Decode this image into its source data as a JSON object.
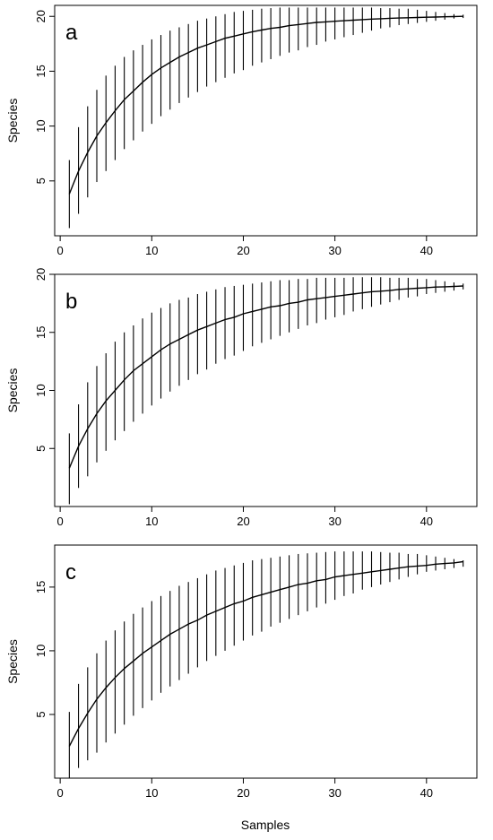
{
  "figure": {
    "xlabel": "Samples"
  },
  "chart_data": [
    {
      "type": "line",
      "panel_label": "a",
      "ylabel": "Species",
      "xlim": [
        0,
        45
      ],
      "ylim": [
        0,
        21
      ],
      "x_ticks": [
        0,
        10,
        20,
        30,
        40
      ],
      "y_ticks": [
        5,
        10,
        15,
        20
      ],
      "grid": false,
      "x": [
        1,
        2,
        3,
        4,
        5,
        6,
        7,
        8,
        9,
        10,
        11,
        12,
        13,
        14,
        15,
        16,
        17,
        18,
        19,
        20,
        21,
        22,
        23,
        24,
        25,
        26,
        27,
        28,
        29,
        30,
        31,
        32,
        33,
        34,
        35,
        36,
        37,
        38,
        39,
        40,
        41,
        42,
        43,
        44
      ],
      "series": [
        {
          "values": [
            3.8,
            5.9,
            7.6,
            9.1,
            10.3,
            11.4,
            12.4,
            13.2,
            14.0,
            14.7,
            15.3,
            15.8,
            16.3,
            16.7,
            17.1,
            17.4,
            17.7,
            18.0,
            18.2,
            18.4,
            18.6,
            18.75,
            18.9,
            19.0,
            19.15,
            19.25,
            19.35,
            19.45,
            19.5,
            19.55,
            19.6,
            19.65,
            19.7,
            19.75,
            19.78,
            19.82,
            19.85,
            19.87,
            19.9,
            19.92,
            19.94,
            19.96,
            19.98,
            20.0
          ],
          "lower": [
            0.7,
            2.0,
            3.5,
            4.9,
            5.9,
            6.9,
            7.9,
            8.7,
            9.5,
            10.2,
            10.9,
            11.5,
            12.1,
            12.6,
            13.1,
            13.6,
            14.0,
            14.4,
            14.8,
            15.1,
            15.5,
            15.8,
            16.1,
            16.4,
            16.7,
            16.9,
            17.2,
            17.4,
            17.7,
            17.9,
            18.1,
            18.3,
            18.5,
            18.7,
            18.9,
            19.0,
            19.2,
            19.3,
            19.4,
            19.5,
            19.6,
            19.7,
            19.8,
            19.85
          ],
          "upper": [
            6.9,
            9.9,
            11.8,
            13.3,
            14.6,
            15.5,
            16.3,
            16.9,
            17.4,
            17.9,
            18.3,
            18.7,
            19.0,
            19.3,
            19.6,
            19.8,
            20.0,
            20.2,
            20.4,
            20.5,
            20.6,
            20.7,
            20.75,
            20.8,
            20.8,
            20.8,
            20.8,
            20.8,
            20.8,
            20.8,
            20.8,
            20.8,
            20.8,
            20.8,
            20.75,
            20.75,
            20.7,
            20.7,
            20.6,
            20.5,
            20.4,
            20.3,
            20.2,
            20.15
          ]
        }
      ]
    },
    {
      "type": "line",
      "panel_label": "b",
      "ylabel": "Species",
      "xlim": [
        0,
        45
      ],
      "ylim": [
        0,
        20
      ],
      "x_ticks": [
        0,
        10,
        20,
        30,
        40
      ],
      "y_ticks": [
        5,
        10,
        15,
        20
      ],
      "grid": false,
      "x": [
        1,
        2,
        3,
        4,
        5,
        6,
        7,
        8,
        9,
        10,
        11,
        12,
        13,
        14,
        15,
        16,
        17,
        18,
        19,
        20,
        21,
        22,
        23,
        24,
        25,
        26,
        27,
        28,
        29,
        30,
        31,
        32,
        33,
        34,
        35,
        36,
        37,
        38,
        39,
        40,
        41,
        42,
        43,
        44
      ],
      "series": [
        {
          "values": [
            3.3,
            5.2,
            6.7,
            8.0,
            9.1,
            10.0,
            10.9,
            11.7,
            12.3,
            12.9,
            13.5,
            14.0,
            14.4,
            14.8,
            15.2,
            15.5,
            15.8,
            16.1,
            16.3,
            16.6,
            16.8,
            17.0,
            17.2,
            17.3,
            17.5,
            17.6,
            17.8,
            17.9,
            18.0,
            18.1,
            18.2,
            18.3,
            18.4,
            18.5,
            18.55,
            18.6,
            18.7,
            18.75,
            18.8,
            18.85,
            18.9,
            18.93,
            18.96,
            19.0
          ],
          "lower": [
            0.2,
            1.6,
            2.6,
            3.8,
            4.8,
            5.7,
            6.5,
            7.3,
            8.0,
            8.7,
            9.3,
            9.9,
            10.4,
            10.9,
            11.4,
            11.8,
            12.3,
            12.7,
            13.0,
            13.4,
            13.8,
            14.1,
            14.4,
            14.7,
            15.0,
            15.3,
            15.6,
            15.8,
            16.1,
            16.3,
            16.5,
            16.8,
            17.0,
            17.2,
            17.4,
            17.6,
            17.8,
            18.0,
            18.1,
            18.3,
            18.4,
            18.5,
            18.6,
            18.7
          ],
          "upper": [
            6.3,
            8.8,
            10.7,
            12.1,
            13.2,
            14.2,
            15.0,
            15.6,
            16.2,
            16.7,
            17.1,
            17.5,
            17.8,
            18.0,
            18.3,
            18.5,
            18.7,
            18.9,
            19.0,
            19.1,
            19.2,
            19.3,
            19.4,
            19.5,
            19.5,
            19.6,
            19.6,
            19.7,
            19.7,
            19.7,
            19.7,
            19.75,
            19.75,
            19.75,
            19.75,
            19.7,
            19.7,
            19.7,
            19.6,
            19.6,
            19.5,
            19.4,
            19.3,
            19.2
          ]
        }
      ]
    },
    {
      "type": "line",
      "panel_label": "c",
      "ylabel": "Species",
      "xlim": [
        0,
        45
      ],
      "ylim": [
        0,
        18
      ],
      "x_ticks": [
        0,
        10,
        20,
        30,
        40
      ],
      "y_ticks": [
        5,
        10,
        15
      ],
      "grid": false,
      "x": [
        1,
        2,
        3,
        4,
        5,
        6,
        7,
        8,
        9,
        10,
        11,
        12,
        13,
        14,
        15,
        16,
        17,
        18,
        19,
        20,
        21,
        22,
        23,
        24,
        25,
        26,
        27,
        28,
        29,
        30,
        31,
        32,
        33,
        34,
        35,
        36,
        37,
        38,
        39,
        40,
        41,
        42,
        43,
        44
      ],
      "series": [
        {
          "values": [
            2.5,
            3.9,
            5.1,
            6.2,
            7.1,
            7.9,
            8.6,
            9.2,
            9.8,
            10.3,
            10.8,
            11.3,
            11.7,
            12.1,
            12.4,
            12.8,
            13.1,
            13.4,
            13.7,
            13.9,
            14.2,
            14.4,
            14.6,
            14.8,
            15.0,
            15.2,
            15.3,
            15.5,
            15.6,
            15.8,
            15.9,
            16.0,
            16.1,
            16.2,
            16.3,
            16.4,
            16.5,
            16.6,
            16.65,
            16.7,
            16.8,
            16.85,
            16.9,
            17.0
          ],
          "lower": [
            0.0,
            0.8,
            1.4,
            2.0,
            2.8,
            3.5,
            4.2,
            4.9,
            5.5,
            6.1,
            6.7,
            7.2,
            7.7,
            8.2,
            8.7,
            9.2,
            9.6,
            10.0,
            10.4,
            10.8,
            11.2,
            11.5,
            11.9,
            12.2,
            12.5,
            12.8,
            13.1,
            13.4,
            13.7,
            14.0,
            14.3,
            14.5,
            14.8,
            15.0,
            15.2,
            15.4,
            15.6,
            15.8,
            16.0,
            16.2,
            16.3,
            16.4,
            16.5,
            16.6
          ],
          "upper": [
            5.2,
            7.4,
            8.7,
            9.8,
            10.8,
            11.6,
            12.3,
            12.9,
            13.4,
            13.9,
            14.3,
            14.7,
            15.1,
            15.4,
            15.7,
            16.0,
            16.3,
            16.5,
            16.7,
            16.9,
            17.1,
            17.2,
            17.3,
            17.4,
            17.5,
            17.6,
            17.65,
            17.7,
            17.75,
            17.8,
            17.8,
            17.8,
            17.8,
            17.8,
            17.75,
            17.7,
            17.7,
            17.6,
            17.6,
            17.5,
            17.4,
            17.3,
            17.2,
            17.1
          ]
        }
      ]
    }
  ]
}
